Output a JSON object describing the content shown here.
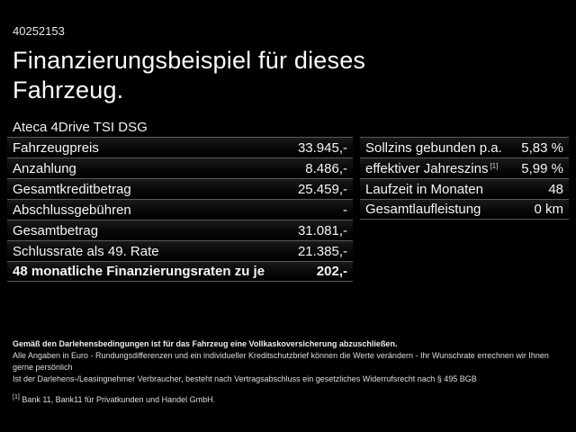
{
  "header": {
    "listing_id": "40252153",
    "title_line1": "Finanzierungsbeispiel für dieses",
    "title_line2": "Fahrzeug."
  },
  "model": "Ateca 4Drive TSI DSG",
  "left_table": {
    "rows": [
      {
        "label": "Fahrzeugpreis",
        "value": "33.945,-"
      },
      {
        "label": "Anzahlung",
        "value": "8.486,-"
      },
      {
        "label": "Gesamtkreditbetrag",
        "value": "25.459,-"
      },
      {
        "label": "Abschlussgebühren",
        "value": "-"
      },
      {
        "label": "Gesamtbetrag",
        "value": "31.081,-"
      },
      {
        "label": "Schlussrate als 49. Rate",
        "value": "21.385,-"
      },
      {
        "label": "48 monatliche Finanzierungsraten zu je",
        "value": "202,-"
      }
    ]
  },
  "right_table": {
    "rows": [
      {
        "label": "Sollzins gebunden p.a.",
        "sup": "",
        "value": "5,83 %"
      },
      {
        "label": "effektiver Jahreszins",
        "sup": "[1]",
        "value": "5,99 %"
      },
      {
        "label": "Laufzeit in Monaten",
        "sup": "",
        "value": "48"
      },
      {
        "label": "Gesamtlaufleistung",
        "sup": "",
        "value": "0 km"
      }
    ]
  },
  "footnotes": {
    "insurance_note": "Gemäß den Darlehensbedingungen ist für das Fahrzeug eine Vollkaskoversicherung abzuschließen.",
    "disclaimer1": "Alle Angaben in Euro - Rundungsdifferenzen und ein individueller Kreditschutzbrief können die Werte verändern - Ihr Wunschrate errechnen wir Ihnen gerne persönlich",
    "disclaimer2": "Ist der Darlehens-/Leasingnehmer Verbraucher, besteht nach Vertragsabschluss ein gesetzliches Widerrufsrecht nach § 495 BGB",
    "ref_marker": "[1]",
    "ref_text": "Bank 11, Bank11 für Privatkunden und Handel GmbH."
  },
  "colors": {
    "background": "#000000",
    "text": "#f5f5f5",
    "separator": "#5a5a5a"
  }
}
